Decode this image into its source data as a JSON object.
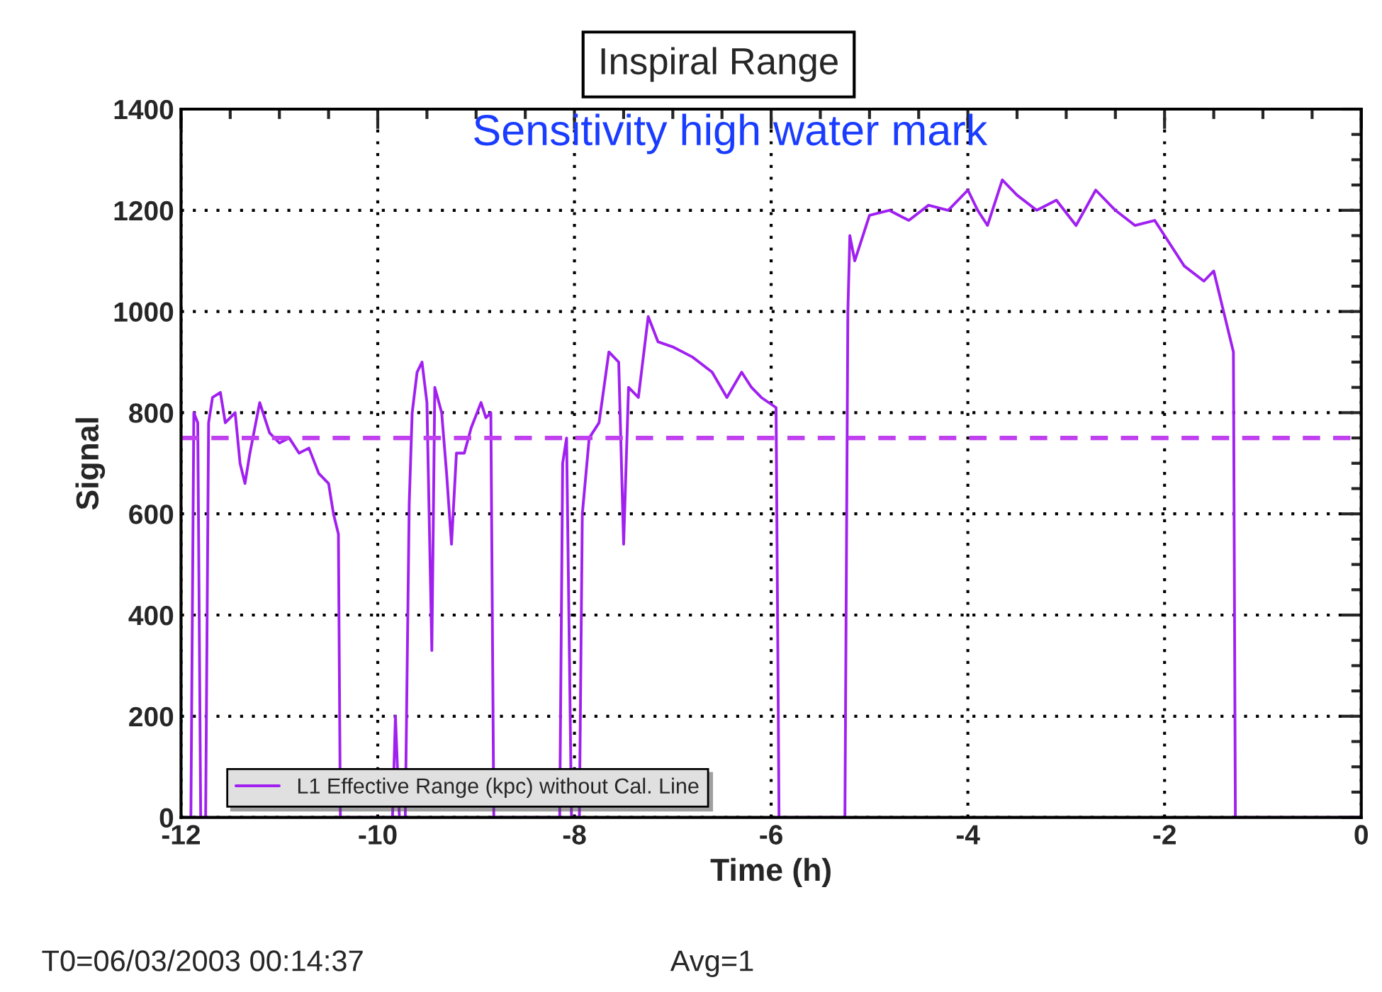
{
  "chart_data": {
    "type": "line",
    "title": "Inspiral Range",
    "xlabel": "Time (h)",
    "ylabel": "Signal",
    "xlim": [
      -12,
      0
    ],
    "xticks": [
      -12,
      -10,
      -8,
      -6,
      -4,
      -2,
      0
    ],
    "ylim": [
      0,
      1400
    ],
    "yticks": [
      0,
      200,
      400,
      600,
      800,
      1000,
      1200,
      1400
    ],
    "grid": true,
    "legend": "bottom left",
    "line_style": "solid",
    "marker": "none",
    "series": [
      {
        "name": "L1 Effective Range (kpc) without Cal. Line",
        "color": "#a020f0",
        "x": [
          -12,
          -11.9,
          -11.87,
          -11.83,
          -11.8,
          -11.75,
          -11.72,
          -11.68,
          -11.6,
          -11.55,
          -11.45,
          -11.4,
          -11.35,
          -11.3,
          -11.2,
          -11.1,
          -11.0,
          -10.9,
          -10.8,
          -10.7,
          -10.6,
          -10.5,
          -10.45,
          -10.4,
          -10.38,
          -9.85,
          -9.82,
          -9.78,
          -9.72,
          -9.68,
          -9.65,
          -9.6,
          -9.55,
          -9.5,
          -9.45,
          -9.42,
          -9.35,
          -9.3,
          -9.25,
          -9.2,
          -9.12,
          -9.05,
          -8.95,
          -8.9,
          -8.85,
          -8.82,
          -8.15,
          -8.12,
          -8.08,
          -8.03,
          -7.95,
          -7.92,
          -7.85,
          -7.75,
          -7.65,
          -7.55,
          -7.5,
          -7.45,
          -7.35,
          -7.25,
          -7.15,
          -7.0,
          -6.8,
          -6.6,
          -6.45,
          -6.3,
          -6.2,
          -6.1,
          -5.95,
          -5.92,
          -5.25,
          -5.22,
          -5.2,
          -5.15,
          -5.0,
          -4.8,
          -4.6,
          -4.4,
          -4.2,
          -4.0,
          -3.9,
          -3.8,
          -3.65,
          -3.5,
          -3.3,
          -3.1,
          -2.9,
          -2.7,
          -2.5,
          -2.3,
          -2.1,
          -2.0,
          -1.8,
          -1.6,
          -1.5,
          -1.4,
          -1.3,
          -1.28,
          0
        ],
        "values": [
          0,
          0,
          800,
          780,
          0,
          0,
          780,
          830,
          840,
          780,
          800,
          700,
          660,
          720,
          820,
          760,
          740,
          750,
          720,
          730,
          680,
          660,
          600,
          560,
          0,
          0,
          200,
          0,
          0,
          620,
          800,
          880,
          900,
          820,
          330,
          850,
          800,
          680,
          540,
          720,
          720,
          770,
          820,
          790,
          800,
          0,
          0,
          700,
          750,
          0,
          0,
          600,
          750,
          780,
          920,
          900,
          540,
          850,
          830,
          990,
          940,
          930,
          910,
          880,
          830,
          880,
          850,
          830,
          810,
          0,
          0,
          1000,
          1150,
          1100,
          1190,
          1200,
          1180,
          1210,
          1200,
          1240,
          1200,
          1170,
          1260,
          1230,
          1200,
          1220,
          1170,
          1240,
          1200,
          1170,
          1180,
          1150,
          1090,
          1060,
          1080,
          1000,
          920,
          0,
          0
        ]
      }
    ],
    "ref_lines": [
      {
        "axis": "y",
        "value": 750,
        "color": "#c040f0",
        "line_style": "dashed"
      }
    ],
    "annotations": [
      "Sensitivity high water mark",
      "T0=06/03/2003 00:14:37",
      "Avg=1"
    ]
  }
}
